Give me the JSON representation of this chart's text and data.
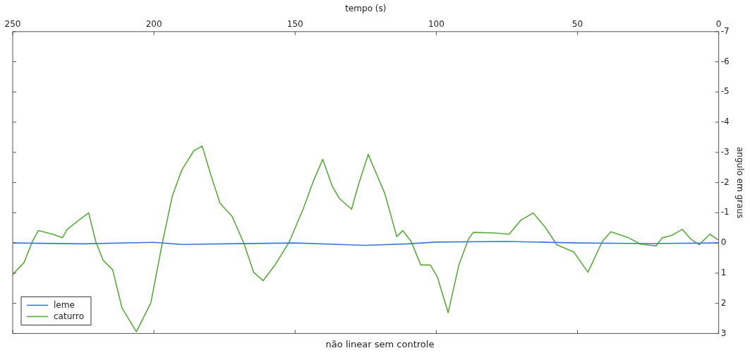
{
  "chart_data": {
    "type": "line",
    "title": "não linear sem controle",
    "xlabel": "tempo (s)",
    "ylabel": "angulo em graus",
    "xlim": [
      250,
      0
    ],
    "xticks": [
      0,
      50,
      100,
      150,
      200,
      250
    ],
    "ylim": [
      3,
      -7
    ],
    "yticks": [
      -7,
      -6,
      -5,
      -4,
      -3,
      -2,
      -1,
      0,
      1,
      2,
      3
    ],
    "grid": false,
    "legend": "bottom left",
    "marker": "none",
    "line_style": "solid",
    "series": [
      {
        "name": "leme",
        "color": "#3c78d8",
        "x": [
          0,
          25,
          50,
          75,
          100,
          110,
          125,
          150,
          175,
          190,
          200,
          225,
          250
        ],
        "values": [
          0,
          0.02,
          0,
          -0.05,
          -0.03,
          0.03,
          0.08,
          0,
          0.03,
          0.05,
          -0.02,
          0.03,
          0
        ]
      },
      {
        "name": "caturro",
        "color": "#5aaa3c",
        "x": [
          0.2,
          3.1,
          6.9,
          9.9,
          12.9,
          16.7,
          20,
          22.2,
          27.7,
          31.9,
          38.2,
          41.2,
          46.3,
          51.3,
          57.3,
          61.5,
          65.7,
          70,
          74.2,
          79.3,
          86.9,
          88.6,
          92,
          95.8,
          99.6,
          102.1,
          105.5,
          108.9,
          111.9,
          114,
          118.2,
          124.1,
          127.5,
          130,
          134.3,
          136.8,
          140.2,
          143.6,
          147,
          152,
          157.1,
          161.3,
          164.7,
          168.1,
          172.3,
          176.6,
          180,
          182.9,
          185.9,
          190.1,
          193.5,
          196.9,
          201.1,
          206.2,
          211.3,
          214.6,
          218,
          220.6,
          223.1,
          226.5,
          230.7,
          232.4,
          235.8,
          240.9,
          243,
          246,
          250
        ],
        "values": [
          -0.1,
          -0.29,
          0.06,
          -0.13,
          -0.45,
          -0.25,
          -0.17,
          0.1,
          0.04,
          -0.17,
          -0.37,
          -0.05,
          0.97,
          0.3,
          0.06,
          -0.53,
          -0.99,
          -0.76,
          -0.29,
          -0.33,
          -0.35,
          -0.13,
          0.73,
          2.31,
          1.13,
          0.73,
          0.73,
          -0.05,
          -0.41,
          -0.21,
          -1.63,
          -2.93,
          -1.95,
          -1.12,
          -1.47,
          -1.87,
          -2.77,
          -2.03,
          -1.16,
          -0.05,
          0.73,
          1.25,
          0.97,
          0.02,
          -0.88,
          -1.32,
          -2.3,
          -3.21,
          -3.05,
          -2.42,
          -1.55,
          -0.05,
          1.99,
          2.94,
          2.15,
          0.89,
          0.57,
          -0.05,
          -1.0,
          -0.76,
          -0.45,
          -0.17,
          -0.29,
          -0.41,
          -0.05,
          0.65,
          1.05
        ]
      }
    ]
  }
}
